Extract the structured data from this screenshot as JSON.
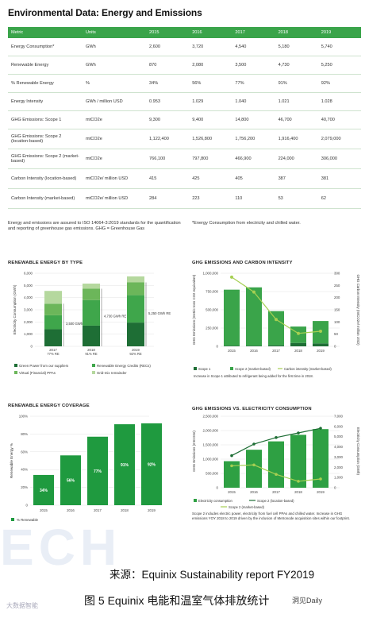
{
  "title": "Environmental Data: Energy and Emissions",
  "table": {
    "headers": [
      "Metric",
      "Units",
      "2015",
      "2016",
      "2017",
      "2018",
      "2019"
    ],
    "rows": [
      [
        "Energy Consumption*",
        "GWh",
        "2,600",
        "3,720",
        "4,540",
        "5,180",
        "5,740"
      ],
      [
        "Renewable Energy",
        "GWh",
        "870",
        "2,080",
        "3,500",
        "4,730",
        "5,250"
      ],
      [
        "% Renewable Energy",
        "%",
        "34%",
        "56%",
        "77%",
        "91%",
        "92%"
      ],
      [
        "Energy Intensity",
        "GWh / million USD",
        "0.953",
        "1.029",
        "1.040",
        "1.021",
        "1.028"
      ],
      [
        "GHG Emissions: Scope 1",
        "mtCO2e",
        "9,300",
        "9,400",
        "14,800",
        "46,700",
        "40,700"
      ],
      [
        "GHG Emissions: Scope 2 (location-based)",
        "mtCO2e",
        "1,122,400",
        "1,526,800",
        "1,756,200",
        "1,916,400",
        "2,079,000"
      ],
      [
        "GHG Emissions: Scope 2 (market-based)",
        "mtCO2e",
        "766,100",
        "797,800",
        "466,900",
        "224,000",
        "306,000"
      ],
      [
        "Carbon Intensity (location-based)",
        "mtCO2e/ million USD",
        "415",
        "425",
        "405",
        "387",
        "381"
      ],
      [
        "Carbon Intensity (market-based)",
        "mtCO2e/ million USD",
        "284",
        "223",
        "110",
        "53",
        "62"
      ]
    ]
  },
  "notes": {
    "left": "Energy and emissions are assured to ISO 14064-3:2019 standards for the quantification and reporting of greenhouse gas emissions. GHG = Greenhouse Gas",
    "right": "*Energy Consumption from electricity and chilled water."
  },
  "chart_data": [
    {
      "type": "bar",
      "title": "RENEWABLE ENERGY BY TYPE",
      "ylabel": "Electricity Consumption (GWh)",
      "ylim": [
        0,
        6000
      ],
      "yticks": [
        "0",
        "1,000",
        "2,000",
        "3,000",
        "4,000",
        "5,000",
        "6,000"
      ],
      "categories": [
        "2017",
        "2018",
        "2019"
      ],
      "category_sublabels": [
        "77% RE",
        "91% RE",
        "92% RE"
      ],
      "series": [
        {
          "name": "Green Power from our suppliers",
          "values": [
            1400,
            1700,
            1950
          ],
          "color": "#1e6e35"
        },
        {
          "name": "Renewable Energy Credits (RECs)",
          "values": [
            1150,
            2100,
            2250
          ],
          "color": "#3fa64b"
        },
        {
          "name": "Virtual (Financial) PPAs",
          "values": [
            950,
            930,
            1050
          ],
          "color": "#6cb65a"
        },
        {
          "name": "Grid-mix remainder",
          "values": [
            1050,
            420,
            490
          ],
          "color": "#b5d89e"
        }
      ],
      "annotations": [
        "3,500 GWh RE",
        "4,730 GWh RE",
        "5,250 GWh RE"
      ]
    },
    {
      "type": "bar",
      "title": "GHG EMISSIONS AND CARBON INTENSITY",
      "ylabel": "GHG Emissions (metric tons CO2 equivalent)",
      "y2label": "GHG Carbon Intensity (mtCO2e/ million USD)",
      "ylim": [
        0,
        1000000
      ],
      "yticks": [
        "0",
        "250,000",
        "500,000",
        "750,000",
        "1,000,000"
      ],
      "y2lim": [
        0,
        300
      ],
      "y2ticks": [
        "0",
        "50",
        "100",
        "150",
        "200",
        "250",
        "300"
      ],
      "categories": [
        "2015",
        "2016",
        "2017",
        "2018",
        "2019"
      ],
      "series": [
        {
          "name": "Scope 1",
          "values": [
            9300,
            9400,
            14800,
            46700,
            40700
          ],
          "color": "#1e6e35"
        },
        {
          "name": "Scope 2 (market-based)",
          "values": [
            766100,
            797800,
            466900,
            224000,
            306000
          ],
          "color": "#3aa44a"
        },
        {
          "name": "Carbon intensity (market-based)",
          "values": [
            284,
            223,
            110,
            53,
            62
          ],
          "color": "#a6cf52",
          "axis": "y2"
        }
      ],
      "footnote": "Increase in Scope 1 attributed to refrigerant being added for the first time in 2018."
    },
    {
      "type": "bar",
      "title": "RENEWABLE ENERGY COVERAGE",
      "ylabel": "Renewable Energy %",
      "ylim": [
        0,
        100
      ],
      "yticks": [
        "0",
        "20%",
        "40%",
        "60%",
        "80%",
        "100%"
      ],
      "categories": [
        "2015",
        "2016",
        "2017",
        "2018",
        "2019"
      ],
      "series": [
        {
          "name": "% Renewable",
          "values": [
            34,
            56,
            77,
            91,
            92
          ],
          "color": "#1f9a3f"
        }
      ],
      "data_labels": [
        "34%",
        "56%",
        "77%",
        "91%",
        "92%"
      ]
    },
    {
      "type": "bar",
      "title": "GHG EMISSIONS VS. ELECTRICITY CONSUMPTION",
      "ylabel": "GHG Emissions (mtCO2e)",
      "y2label": "Electricity Consumption (GWh)",
      "ylim": [
        0,
        2500000
      ],
      "yticks": [
        "0",
        "500,000",
        "1,000,000",
        "1,500,000",
        "2,000,000",
        "2,500,000"
      ],
      "y2lim": [
        0,
        7000
      ],
      "y2ticks": [
        "0",
        "1,000",
        "2,000",
        "3,000",
        "4,000",
        "5,000",
        "6,000",
        "7,000"
      ],
      "categories": [
        "2015",
        "2016",
        "2017",
        "2018",
        "2019"
      ],
      "series": [
        {
          "name": "Electricity consumption",
          "values": [
            2600,
            3720,
            4540,
            5180,
            5740
          ],
          "color": "#2ea043",
          "axis": "y2"
        },
        {
          "name": "Scope 2 (location-based)",
          "values": [
            1122400,
            1526800,
            1756200,
            1916400,
            2079000
          ],
          "color": "#1e6e35"
        },
        {
          "name": "Scope 2 (market-based)",
          "values": [
            766100,
            797800,
            466900,
            224000,
            306000
          ],
          "color": "#a6cf52"
        }
      ],
      "footnote": "Scope 2 includes electric power, electricity from fuel cell PPAs and chilled water. Increase in GHG emissions YOY 2018 to 2019 driven by the inclusion of Metronode acquisition sites within our footprint."
    }
  ],
  "source": "来源：Equinix Sustainability report FY2019",
  "caption": "图 5 Equinix 电能和温室气体排放统计",
  "watermark_left": "大数据智能",
  "watermark_right": "洞见Daily",
  "watermark_bg": "ECH"
}
